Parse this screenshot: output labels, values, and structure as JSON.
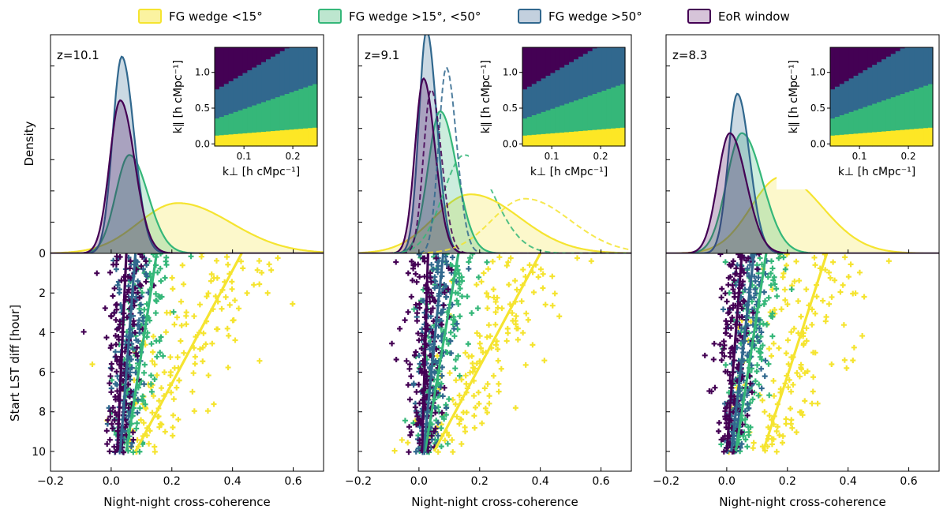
{
  "legend": {
    "items": [
      {
        "label": "FG wedge <15°",
        "stroke": "#f5e430",
        "fill": "#fbf3a0"
      },
      {
        "label": "FG wedge >15°, <50°",
        "stroke": "#35b779",
        "fill": "#bde6cf"
      },
      {
        "label": "FG wedge >50°",
        "stroke": "#31688e",
        "fill": "#c3d0de"
      },
      {
        "label": "EoR window",
        "stroke": "#440154",
        "fill": "#d6c4d9"
      }
    ]
  },
  "chart_data": {
    "type": "kde-scatter-panels",
    "shared": {
      "xlabel": "Night-night cross-coherence",
      "xlim": [
        -0.2,
        0.7
      ],
      "xticks": [
        -0.2,
        0.0,
        0.2,
        0.4,
        0.6
      ],
      "xtick_labels": [
        "−0.2",
        "0.0",
        "0.2",
        "0.4",
        "0.6"
      ],
      "top_ylabel": "Density",
      "bottom_ylabel": "Start LST diff [hour]",
      "bottom_ylim": [
        11,
        0
      ],
      "bottom_yticks": [
        0,
        2,
        4,
        6,
        8,
        10
      ],
      "inset_xlabel": "k⊥ [h cMpc⁻¹]",
      "inset_ylabel": "k∥ [h cMpc⁻¹]",
      "inset_xticks": [
        0.1,
        0.2
      ],
      "inset_xtick_labels": [
        "0.1",
        "0.2"
      ],
      "inset_yticks": [
        0.0,
        0.5,
        1.0
      ],
      "inset_ytick_labels": [
        "0.0",
        "0.5",
        "1.0"
      ],
      "inset_colors": [
        "#440154",
        "#31688e",
        "#35b779",
        "#fde725"
      ]
    },
    "panels": [
      {
        "label": "z=10.1",
        "kde_max": 10,
        "kde": [
          {
            "series": "FG wedge <15°",
            "mean": 0.22,
            "sd": 0.13,
            "peak": 2.3,
            "style": "solid"
          },
          {
            "series": "FG wedge >15°, <50°",
            "mean": 0.06,
            "sd": 0.045,
            "peak": 4.5,
            "style": "solid"
          },
          {
            "series": "FG wedge >50°",
            "mean": 0.035,
            "sd": 0.03,
            "peak": 9.0,
            "style": "solid"
          },
          {
            "series": "EoR window",
            "mean": 0.03,
            "sd": 0.035,
            "peak": 7.0,
            "style": "solid"
          }
        ],
        "trends": [
          {
            "series": "FG wedge <15°",
            "points": [
              [
                0.43,
                0
              ],
              [
                0.08,
                10
              ]
            ]
          },
          {
            "series": "FG wedge >15°, <50°",
            "points": [
              [
                0.15,
                0
              ],
              [
                0.05,
                10
              ]
            ]
          },
          {
            "series": "FG wedge >50°",
            "points": [
              [
                0.08,
                0
              ],
              [
                0.03,
                10
              ]
            ]
          },
          {
            "series": "EoR window",
            "points": [
              [
                0.05,
                0
              ],
              [
                0.02,
                10
              ]
            ]
          }
        ],
        "scatter_spread": [
          0.09,
          0.045,
          0.03,
          0.035
        ]
      },
      {
        "label": "z=9.1",
        "kde_max": 10,
        "kde": [
          {
            "series": "FG wedge <15°",
            "mean": 0.17,
            "sd": 0.12,
            "peak": 2.7,
            "style": "solid"
          },
          {
            "series": "FG wedge >15°, <50°",
            "mean": 0.07,
            "sd": 0.04,
            "peak": 6.5,
            "style": "solid"
          },
          {
            "series": "FG wedge >50°",
            "mean": 0.025,
            "sd": 0.025,
            "peak": 10.2,
            "style": "solid"
          },
          {
            "series": "EoR window",
            "mean": 0.015,
            "sd": 0.028,
            "peak": 8.0,
            "style": "solid"
          },
          {
            "series": "FG wedge <15°",
            "mean": 0.35,
            "sd": 0.11,
            "peak": 2.5,
            "style": "dashed"
          },
          {
            "series": "FG wedge >15°, <50°",
            "mean": 0.15,
            "sd": 0.07,
            "peak": 4.5,
            "style": "dashed"
          },
          {
            "series": "FG wedge >50°",
            "mean": 0.09,
            "sd": 0.025,
            "peak": 8.5,
            "style": "dashed"
          },
          {
            "series": "EoR window",
            "mean": 0.04,
            "sd": 0.025,
            "peak": 7.5,
            "style": "dashed"
          }
        ],
        "trends": [
          {
            "series": "FG wedge <15°",
            "points": [
              [
                0.4,
                0
              ],
              [
                0.05,
                10
              ]
            ]
          },
          {
            "series": "FG wedge >15°, <50°",
            "points": [
              [
                0.13,
                0
              ],
              [
                0.02,
                10
              ]
            ]
          },
          {
            "series": "FG wedge >50°",
            "points": [
              [
                0.08,
                0
              ],
              [
                0.015,
                10
              ]
            ]
          },
          {
            "series": "EoR window",
            "points": [
              [
                0.03,
                0
              ],
              [
                0.01,
                10
              ]
            ]
          }
        ],
        "scatter_spread": [
          0.09,
          0.045,
          0.03,
          0.035
        ]
      },
      {
        "label": "z=8.3",
        "kde_max": 10,
        "kde": [
          {
            "series": "FG wedge <15°",
            "mean": 0.18,
            "sd": 0.1,
            "peak": 3.5,
            "style": "solid"
          },
          {
            "series": "FG wedge >15°, <50°",
            "mean": 0.05,
            "sd": 0.05,
            "peak": 5.5,
            "style": "solid"
          },
          {
            "series": "FG wedge >50°",
            "mean": 0.035,
            "sd": 0.03,
            "peak": 7.3,
            "style": "solid"
          },
          {
            "series": "EoR window",
            "mean": 0.01,
            "sd": 0.04,
            "peak": 5.5,
            "style": "solid"
          }
        ],
        "trends": [
          {
            "series": "FG wedge <15°",
            "points": [
              [
                0.33,
                0
              ],
              [
                0.12,
                10
              ]
            ]
          },
          {
            "series": "FG wedge >15°, <50°",
            "points": [
              [
                0.13,
                0
              ],
              [
                0.03,
                10
              ]
            ]
          },
          {
            "series": "FG wedge >50°",
            "points": [
              [
                0.09,
                0
              ],
              [
                0.015,
                10
              ]
            ]
          },
          {
            "series": "EoR window",
            "points": [
              [
                0.05,
                0
              ],
              [
                0.0,
                10
              ]
            ]
          }
        ],
        "scatter_spread": [
          0.09,
          0.045,
          0.03,
          0.035
        ]
      }
    ]
  }
}
